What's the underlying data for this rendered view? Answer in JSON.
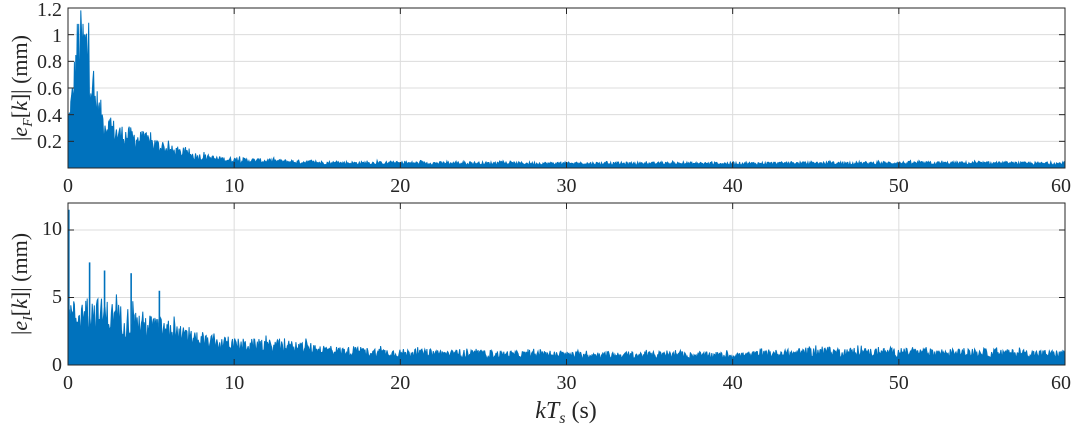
{
  "chart_data": [
    {
      "type": "area",
      "ylabel": "|e_F[k]| (mm)",
      "ylabel_parts": {
        "bar_open": "|",
        "e": "e",
        "sub": "F",
        "k_open": "[",
        "k": "k",
        "k_close": "]",
        "bar_close": "|",
        "unit": " (mm)"
      },
      "xlim": [
        0,
        60
      ],
      "ylim": [
        0,
        1.2
      ],
      "xticks": [
        "0",
        "10",
        "20",
        "30",
        "40",
        "50",
        "60"
      ],
      "yticks": [
        "0.2",
        "0.4",
        "0.6",
        "0.8",
        "1",
        "1.2"
      ],
      "ytick_values": [
        0.2,
        0.4,
        0.6,
        0.8,
        1.0,
        1.2
      ],
      "grid": true,
      "color": "#0072BD",
      "envelope": {
        "x": [
          0,
          0.3,
          0.6,
          0.9,
          1.2,
          1.5,
          2,
          2.5,
          3,
          4,
          5,
          6,
          7,
          8,
          9,
          10,
          12,
          14,
          16,
          20,
          30,
          40,
          50,
          60
        ],
        "y": [
          0.42,
          0.72,
          1.2,
          1.2,
          1.2,
          0.72,
          0.5,
          0.4,
          0.34,
          0.3,
          0.25,
          0.18,
          0.14,
          0.11,
          0.09,
          0.08,
          0.07,
          0.06,
          0.05,
          0.05,
          0.045,
          0.045,
          0.05,
          0.045
        ]
      }
    },
    {
      "type": "area",
      "ylabel": "|e_I[k]| (mm)",
      "ylabel_parts": {
        "bar_open": "|",
        "e": "e",
        "sub": "I",
        "k_open": "[",
        "k": "k",
        "k_close": "]",
        "bar_close": "|",
        "unit": " (mm)"
      },
      "xlabel": "kT_s (s)",
      "xlabel_parts": {
        "k": "k",
        "T": "T",
        "sub": "s",
        "unit": " (s)"
      },
      "xlim": [
        0,
        60
      ],
      "ylim": [
        0,
        12
      ],
      "xticks": [
        "0",
        "10",
        "20",
        "30",
        "40",
        "50",
        "60"
      ],
      "yticks": [
        "0",
        "5",
        "10"
      ],
      "ytick_values": [
        0,
        5,
        10
      ],
      "grid": true,
      "color": "#0072BD",
      "spikes": {
        "x": [
          0.05,
          1.3,
          2.2,
          3.8,
          5.5
        ],
        "y": [
          11.5,
          7.6,
          7.0,
          6.8,
          5.5
        ]
      },
      "envelope": {
        "x": [
          0,
          0.5,
          1,
          2,
          3,
          4,
          5,
          6,
          7,
          8,
          10,
          12,
          14,
          16,
          20,
          25,
          30,
          35,
          40,
          45,
          50,
          55,
          60
        ],
        "y": [
          5.0,
          4.8,
          5.2,
          5.0,
          4.6,
          4.2,
          3.8,
          3.4,
          2.8,
          2.3,
          2.0,
          1.9,
          1.8,
          1.4,
          1.2,
          1.1,
          1.0,
          1.0,
          0.95,
          1.3,
          1.25,
          1.2,
          1.1
        ]
      }
    }
  ]
}
